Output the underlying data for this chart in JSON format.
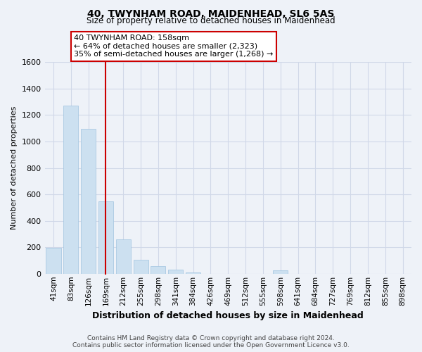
{
  "title": "40, TWYNHAM ROAD, MAIDENHEAD, SL6 5AS",
  "subtitle": "Size of property relative to detached houses in Maidenhead",
  "xlabel": "Distribution of detached houses by size in Maidenhead",
  "ylabel": "Number of detached properties",
  "footer_line1": "Contains HM Land Registry data © Crown copyright and database right 2024.",
  "footer_line2": "Contains public sector information licensed under the Open Government Licence v3.0.",
  "categories": [
    "41sqm",
    "83sqm",
    "126sqm",
    "169sqm",
    "212sqm",
    "255sqm",
    "298sqm",
    "341sqm",
    "384sqm",
    "426sqm",
    "469sqm",
    "512sqm",
    "555sqm",
    "598sqm",
    "641sqm",
    "684sqm",
    "727sqm",
    "769sqm",
    "812sqm",
    "855sqm",
    "898sqm"
  ],
  "values": [
    195,
    1270,
    1095,
    545,
    260,
    105,
    55,
    30,
    10,
    0,
    0,
    0,
    0,
    25,
    0,
    0,
    0,
    0,
    0,
    0,
    0
  ],
  "bar_color": "#cce0f0",
  "bar_edge_color": "#a0c4e0",
  "grid_color": "#d0d8e8",
  "background_color": "#eef2f8",
  "ylim": [
    0,
    1600
  ],
  "yticks": [
    0,
    200,
    400,
    600,
    800,
    1000,
    1200,
    1400,
    1600
  ],
  "annotation_title": "40 TWYNHAM ROAD: 158sqm",
  "annotation_line1": "← 64% of detached houses are smaller (2,323)",
  "annotation_line2": "35% of semi-detached houses are larger (1,268) →",
  "annotation_box_color": "#ffffff",
  "annotation_box_edge": "#cc0000",
  "vline_color": "#cc0000",
  "vline_index": 3.0
}
